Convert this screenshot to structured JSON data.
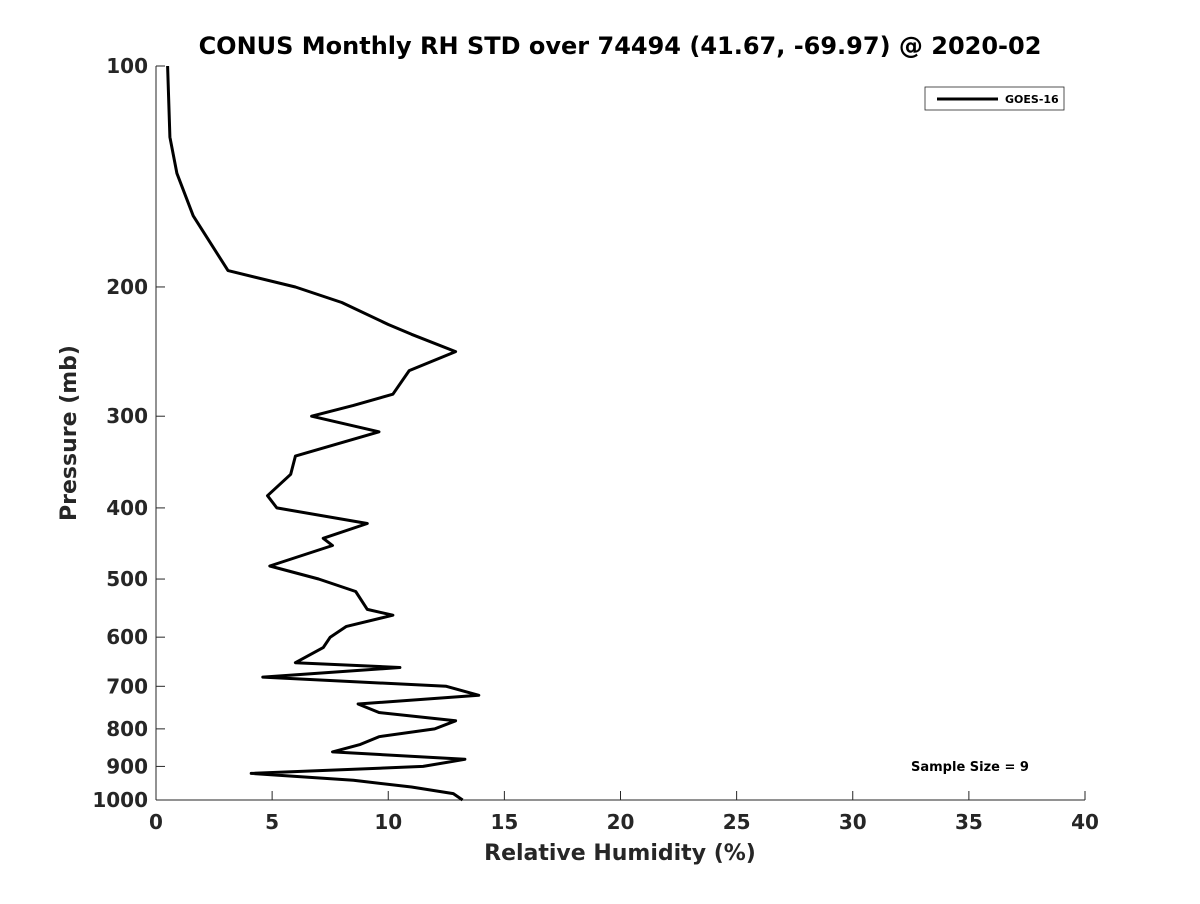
{
  "chart_data": {
    "type": "line",
    "title": "CONUS Monthly RH STD over 74494 (41.67, -69.97) @ 2020-02",
    "xlabel": "Relative Humidity (%)",
    "ylabel": "Pressure (mb)",
    "xlim": [
      0,
      40
    ],
    "ylim": [
      100,
      1000
    ],
    "yscale": "log",
    "ydirection": "reverse",
    "xticks": [
      0,
      5,
      10,
      15,
      20,
      25,
      30,
      35,
      40
    ],
    "yticks": [
      100,
      200,
      300,
      400,
      500,
      600,
      700,
      800,
      900,
      1000
    ],
    "legend_position": "top-right",
    "annotation": "Sample Size = 9",
    "series": [
      {
        "name": "GOES-16",
        "color": "#000000",
        "points": [
          [
            0.5,
            100
          ],
          [
            0.6,
            125
          ],
          [
            0.9,
            140
          ],
          [
            1.6,
            160
          ],
          [
            3.1,
            190
          ],
          [
            6.0,
            200
          ],
          [
            8.0,
            210
          ],
          [
            10.0,
            225
          ],
          [
            11.0,
            232
          ],
          [
            12.9,
            245
          ],
          [
            10.9,
            260
          ],
          [
            10.2,
            280
          ],
          [
            8.5,
            290
          ],
          [
            6.7,
            300
          ],
          [
            9.6,
            315
          ],
          [
            6.0,
            340
          ],
          [
            5.8,
            360
          ],
          [
            4.8,
            385
          ],
          [
            5.2,
            400
          ],
          [
            9.1,
            420
          ],
          [
            7.2,
            440
          ],
          [
            7.6,
            450
          ],
          [
            4.9,
            480
          ],
          [
            7.0,
            500
          ],
          [
            8.6,
            520
          ],
          [
            9.1,
            550
          ],
          [
            10.2,
            560
          ],
          [
            8.2,
            580
          ],
          [
            7.5,
            600
          ],
          [
            7.2,
            620
          ],
          [
            6.0,
            650
          ],
          [
            10.5,
            660
          ],
          [
            4.6,
            680
          ],
          [
            12.5,
            700
          ],
          [
            13.9,
            720
          ],
          [
            8.7,
            740
          ],
          [
            9.6,
            760
          ],
          [
            12.9,
            780
          ],
          [
            12.0,
            800
          ],
          [
            9.6,
            820
          ],
          [
            8.8,
            840
          ],
          [
            7.6,
            860
          ],
          [
            13.3,
            880
          ],
          [
            11.5,
            900
          ],
          [
            4.1,
            920
          ],
          [
            8.5,
            940
          ],
          [
            11.0,
            960
          ],
          [
            12.8,
            980
          ],
          [
            13.2,
            1000
          ]
        ]
      }
    ]
  }
}
